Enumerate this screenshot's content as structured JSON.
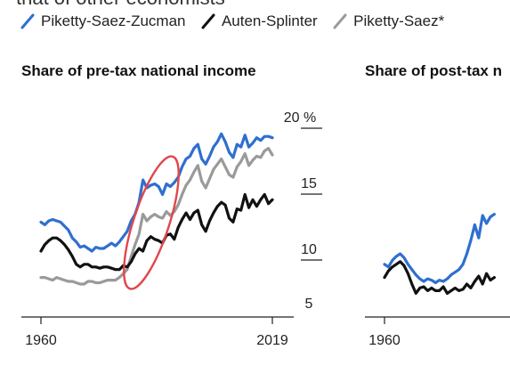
{
  "page": {
    "clipped_heading": "that of other economists"
  },
  "legend": [
    {
      "name": "Piketty-Saez-Zucman",
      "color": "#2f6fcf",
      "icon": "slash-icon"
    },
    {
      "name": "Auten-Splinter",
      "color": "#111111",
      "icon": "slash-icon"
    },
    {
      "name": "Piketty-Saez*",
      "color": "#9a9a9a",
      "icon": "slash-icon"
    }
  ],
  "annotation": {
    "shape": "ellipse",
    "color": "#e0474c"
  },
  "chart_data": [
    {
      "type": "line",
      "title": "Share of pre-tax national income",
      "xlabel": "",
      "ylabel": "",
      "xlim": [
        1960,
        2019
      ],
      "ylim": [
        5,
        20
      ],
      "x_ticks": [
        "1960",
        "2019"
      ],
      "y_ticks": [
        {
          "value": 20,
          "label": "20 %"
        },
        {
          "value": 15,
          "label": "15"
        },
        {
          "value": 10,
          "label": "10"
        },
        {
          "value": 5,
          "label": "5"
        }
      ],
      "grid": false,
      "series": [
        {
          "name": "Piketty-Saez-Zucman",
          "color": "#2f6fcf",
          "x_start": 1960,
          "values": [
            12.2,
            12.0,
            12.3,
            12.4,
            12.3,
            12.2,
            11.9,
            11.6,
            11.0,
            10.7,
            10.3,
            10.4,
            10.2,
            10.0,
            10.3,
            10.2,
            10.2,
            10.4,
            10.6,
            10.4,
            10.7,
            11.1,
            11.5,
            12.3,
            12.8,
            13.7,
            15.4,
            14.8,
            15.0,
            15.1,
            14.9,
            14.3,
            15.1,
            14.9,
            15.2,
            15.6,
            16.4,
            17.0,
            17.2,
            17.8,
            18.1,
            17.0,
            16.6,
            17.2,
            17.9,
            18.3,
            18.9,
            18.3,
            17.5,
            17.1,
            18.1,
            17.9,
            18.8,
            17.9,
            18.2,
            18.6,
            18.4,
            18.7,
            18.7,
            18.6
          ]
        },
        {
          "name": "Auten-Splinter",
          "color": "#111111",
          "x_start": 1960,
          "values": [
            10.0,
            10.5,
            10.8,
            11.0,
            11.0,
            10.8,
            10.5,
            10.1,
            9.6,
            9.0,
            8.8,
            9.0,
            9.0,
            8.8,
            8.8,
            8.7,
            8.8,
            8.8,
            8.7,
            8.6,
            8.6,
            8.9,
            8.8,
            9.2,
            9.8,
            10.2,
            10.0,
            10.8,
            11.1,
            10.9,
            10.8,
            10.6,
            11.2,
            11.3,
            10.9,
            11.8,
            12.4,
            12.9,
            12.4,
            12.9,
            13.1,
            12.0,
            11.5,
            12.3,
            12.9,
            13.4,
            13.7,
            13.5,
            12.5,
            12.2,
            13.2,
            13.1,
            14.3,
            13.3,
            13.9,
            13.4,
            13.9,
            14.3,
            13.6,
            13.9
          ]
        },
        {
          "name": "Piketty-Saez*",
          "color": "#9a9a9a",
          "x_start": 1960,
          "values": [
            8.0,
            8.0,
            7.9,
            7.8,
            8.0,
            7.9,
            7.8,
            7.7,
            7.7,
            7.6,
            7.5,
            7.5,
            7.7,
            7.7,
            7.6,
            7.6,
            7.7,
            7.8,
            7.8,
            7.8,
            8.0,
            8.3,
            8.6,
            9.6,
            10.5,
            11.3,
            12.8,
            12.3,
            12.6,
            12.8,
            12.6,
            12.5,
            13.0,
            12.7,
            13.0,
            13.5,
            14.3,
            15.0,
            15.4,
            16.0,
            16.5,
            15.3,
            14.8,
            15.5,
            16.2,
            16.6,
            17.0,
            16.4,
            15.8,
            15.6,
            16.4,
            16.8,
            17.4,
            16.5,
            16.9,
            17.2,
            17.1,
            17.6,
            17.8,
            17.3
          ]
        }
      ]
    },
    {
      "type": "line",
      "title": "Share of post-tax n",
      "xlabel": "",
      "ylabel": "",
      "xlim": [
        1960,
        2019
      ],
      "ylim": [
        5,
        20
      ],
      "x_ticks": [
        "1960"
      ],
      "y_ticks": [],
      "grid": false,
      "series": [
        {
          "name": "Piketty-Saez-Zucman",
          "color": "#2f6fcf",
          "x_start": 1960,
          "values": [
            9.0,
            8.8,
            9.3,
            9.6,
            9.8,
            9.5,
            9.0,
            8.6,
            8.2,
            7.9,
            7.7,
            7.9,
            7.8,
            7.6,
            7.8,
            7.7,
            7.9,
            8.2,
            8.4,
            8.6,
            9.0,
            9.8,
            10.8,
            12.0,
            11.0,
            12.7,
            12.1,
            12.6,
            12.8
          ]
        },
        {
          "name": "Auten-Splinter",
          "color": "#111111",
          "x_start": 1960,
          "values": [
            8.0,
            8.5,
            8.8,
            9.0,
            9.2,
            8.9,
            8.3,
            7.5,
            6.8,
            7.2,
            7.3,
            7.0,
            7.2,
            7.0,
            7.0,
            7.3,
            6.8,
            7.0,
            7.2,
            7.0,
            7.1,
            7.5,
            7.2,
            7.7,
            8.1,
            7.5,
            8.3,
            7.8,
            8.0
          ]
        }
      ]
    }
  ]
}
